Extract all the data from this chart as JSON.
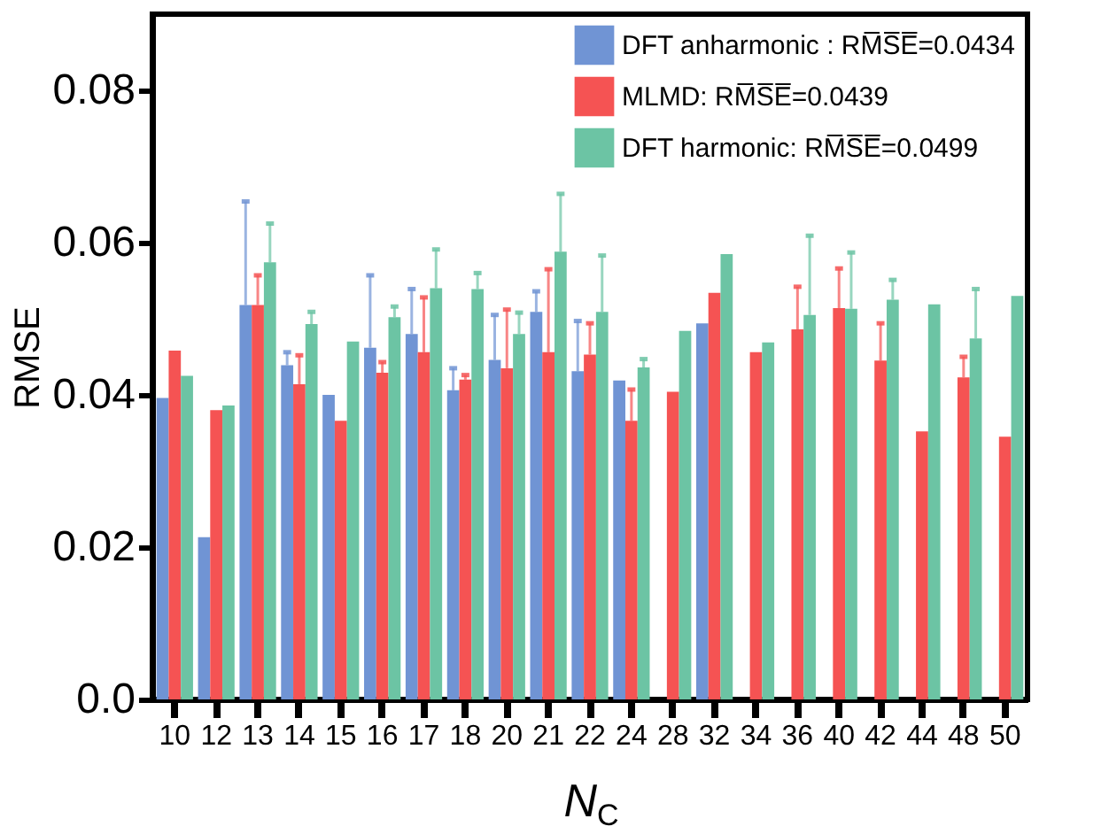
{
  "chart_data": {
    "type": "bar",
    "xlabel": "N$_{C}$",
    "ylabel": "RMSE",
    "categories": [
      "10",
      "12",
      "13",
      "14",
      "15",
      "16",
      "17",
      "18",
      "20",
      "21",
      "22",
      "24",
      "28",
      "32",
      "34",
      "36",
      "40",
      "42",
      "44",
      "48",
      "50"
    ],
    "series": [
      {
        "name": "DFT anharmonic : RM̅S̅E̅=0.0434",
        "color": "#7094d4",
        "values": [
          0.0396,
          0.0213,
          0.0518,
          0.0439,
          0.04,
          0.0462,
          0.048,
          0.0406,
          0.0446,
          0.0509,
          0.0431,
          0.0419,
          null,
          0.0494,
          null,
          null,
          null,
          null,
          null,
          null,
          null
        ],
        "errors": [
          null,
          null,
          [
            0.0518,
            0.0654
          ],
          [
            0.0439,
            0.0456
          ],
          null,
          [
            0.0462,
            0.0557
          ],
          [
            0.048,
            0.0539
          ],
          [
            0.0406,
            0.0435
          ],
          [
            0.0446,
            0.0505
          ],
          [
            0.0509,
            0.0536
          ],
          [
            0.0431,
            0.0497
          ],
          null,
          null,
          null,
          null,
          null,
          null,
          null,
          null,
          null,
          null
        ]
      },
      {
        "name": "MLMD: RM̅S̅E̅=0.0439",
        "color": "#f55353",
        "values": [
          0.0458,
          0.038,
          0.0518,
          0.0414,
          0.0366,
          0.0429,
          0.0456,
          0.042,
          0.0435,
          0.0456,
          0.0453,
          0.0366,
          0.0404,
          0.0534,
          0.0456,
          0.0486,
          0.0514,
          0.0445,
          0.0352,
          0.0423,
          0.0345
        ],
        "errors": [
          null,
          null,
          [
            0.0518,
            0.0557
          ],
          [
            0.0414,
            0.0452
          ],
          null,
          [
            0.0429,
            0.0443
          ],
          [
            0.0456,
            0.0528
          ],
          [
            0.042,
            0.0426
          ],
          [
            0.0435,
            0.0512
          ],
          [
            0.0456,
            0.0565
          ],
          [
            0.0453,
            0.0494
          ],
          [
            0.0366,
            0.0407
          ],
          null,
          null,
          null,
          [
            0.0486,
            0.0542
          ],
          [
            0.0514,
            0.0566
          ],
          [
            0.0445,
            0.0494
          ],
          null,
          [
            0.0423,
            0.045
          ],
          null
        ]
      },
      {
        "name": "DFT harmonic: RM̅S̅E̅=0.0499",
        "color": "#6cc4a4",
        "values": [
          0.0425,
          0.0386,
          0.0574,
          0.0493,
          0.047,
          0.0502,
          0.054,
          0.0539,
          0.048,
          0.0588,
          0.0509,
          0.0436,
          0.0484,
          0.0585,
          0.0469,
          0.0505,
          0.0513,
          0.0525,
          0.0519,
          0.0474,
          0.053
        ],
        "errors": [
          null,
          null,
          [
            0.0574,
            0.0625
          ],
          [
            0.0493,
            0.0509
          ],
          null,
          [
            0.0502,
            0.0516
          ],
          [
            0.054,
            0.0591
          ],
          [
            0.0539,
            0.056
          ],
          [
            0.048,
            0.0508
          ],
          [
            0.0588,
            0.0664
          ],
          [
            0.0509,
            0.0583
          ],
          [
            0.0436,
            0.0447
          ],
          null,
          null,
          null,
          [
            0.0505,
            0.0609
          ],
          [
            0.0513,
            0.0587
          ],
          [
            0.0525,
            0.0551
          ],
          null,
          [
            0.0474,
            0.0539
          ],
          null
        ]
      }
    ],
    "ylim": [
      0,
      0.09
    ],
    "yticks": [
      {
        "value": 0,
        "label": "0.0"
      },
      0.02,
      0.04,
      0.06,
      0.08
    ],
    "grid": false,
    "legend": "top right"
  }
}
